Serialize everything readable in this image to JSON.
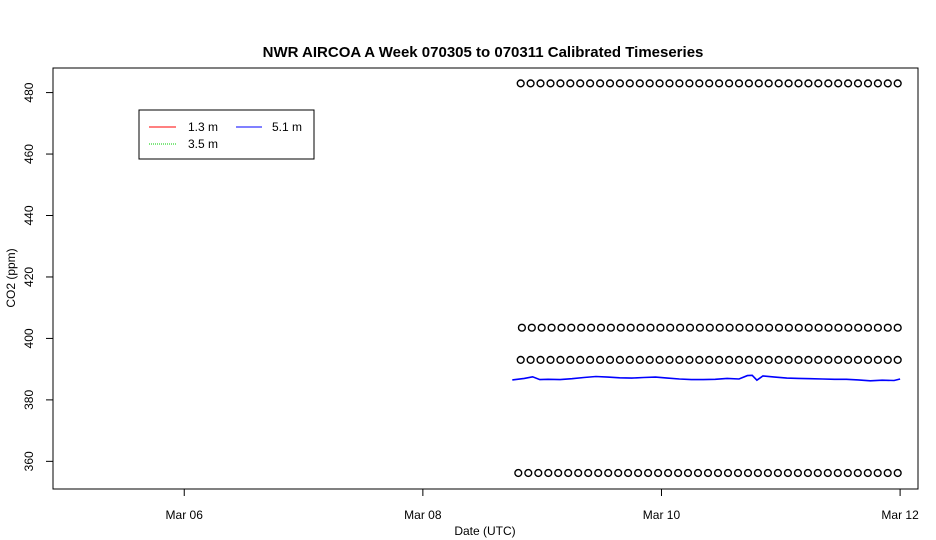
{
  "chart_data": {
    "type": "line",
    "title": "NWR AIRCOA A  Week 070305 to 070311  Calibrated Timeseries",
    "xlabel": "Date (UTC)",
    "ylabel": "CO2 (ppm)",
    "xlim": [
      4.9,
      12.15
    ],
    "ylim": [
      351,
      488
    ],
    "x_ticks": [
      {
        "value": 6,
        "label": "Mar 06"
      },
      {
        "value": 8,
        "label": "Mar 08"
      },
      {
        "value": 10,
        "label": "Mar 10"
      },
      {
        "value": 12,
        "label": "Mar 12"
      }
    ],
    "y_ticks": [
      360,
      380,
      400,
      420,
      440,
      460,
      480
    ],
    "grid": false,
    "legend": {
      "position": "top-left",
      "entries": [
        {
          "name": "1.3 m",
          "color": "#ff0000"
        },
        {
          "name": "5.1 m",
          "color": "#0000ff"
        },
        {
          "name": "3.5 m",
          "color": "#00cc00"
        }
      ]
    },
    "series": [
      {
        "name": "5.1 m",
        "color": "#0000ff",
        "x": [
          8.75,
          8.85,
          8.92,
          8.98,
          9.05,
          9.15,
          9.25,
          9.35,
          9.45,
          9.55,
          9.65,
          9.75,
          9.85,
          9.95,
          10.05,
          10.15,
          10.25,
          10.35,
          10.45,
          10.55,
          10.65,
          10.72,
          10.76,
          10.8,
          10.85,
          10.95,
          11.05,
          11.15,
          11.25,
          11.35,
          11.45,
          11.55,
          11.65,
          11.75,
          11.85,
          11.95,
          12.0
        ],
        "values": [
          386.5,
          387.0,
          387.5,
          386.6,
          386.7,
          386.6,
          386.9,
          387.3,
          387.6,
          387.4,
          387.2,
          387.1,
          387.3,
          387.4,
          387.1,
          386.8,
          386.6,
          386.6,
          386.7,
          387.0,
          386.8,
          387.9,
          388.0,
          386.4,
          387.8,
          387.4,
          387.1,
          387.0,
          386.9,
          386.8,
          386.7,
          386.7,
          386.5,
          386.2,
          386.4,
          386.3,
          386.8
        ]
      }
    ],
    "calibration_points": {
      "marker": "open-circle",
      "rows": [
        {
          "value": 483,
          "x_start": 8.82,
          "x_end": 11.98,
          "count": 39
        },
        {
          "value": 403.5,
          "x_start": 8.83,
          "x_end": 11.98,
          "count": 39
        },
        {
          "value": 393,
          "x_start": 8.82,
          "x_end": 11.98,
          "count": 39
        },
        {
          "value": 356.2,
          "x_start": 8.8,
          "x_end": 11.98,
          "count": 39
        }
      ]
    }
  }
}
